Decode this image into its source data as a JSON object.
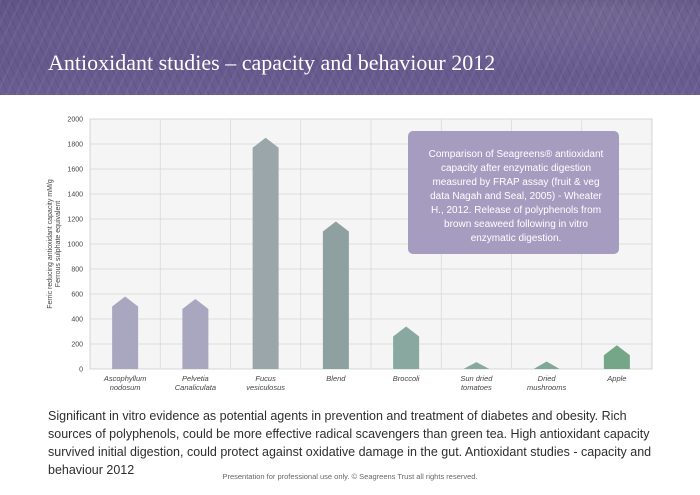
{
  "header": {
    "title": "Antioxidant studies – capacity and behaviour 2012"
  },
  "chart_data": {
    "type": "bar",
    "categories": [
      [
        "Ascophyllum",
        "nodosum"
      ],
      [
        "Pelvetia",
        "Canaliculata"
      ],
      [
        "Fucus",
        "vesiculosus"
      ],
      [
        "Blend"
      ],
      [
        "Broccoli"
      ],
      [
        "Sun dried",
        "tomatoes"
      ],
      [
        "Dried",
        "mushrooms"
      ],
      [
        "Apple"
      ]
    ],
    "values": [
      580,
      560,
      1850,
      1180,
      340,
      55,
      60,
      190
    ],
    "bar_colors": [
      "#a9a6bf",
      "#a9a6bf",
      "#9ba6ab",
      "#8ea0a0",
      "#88a8a0",
      "#88a8a0",
      "#7ea996",
      "#76a688"
    ],
    "ylabel": [
      "Ferric reducing antioxidant capacity mM/g",
      "Ferrous sulphate equivalent"
    ],
    "ylim": [
      0,
      2000
    ],
    "yticks": [
      0,
      200,
      400,
      600,
      800,
      1000,
      1200,
      1400,
      1600,
      1800,
      2000
    ],
    "grid": true,
    "annotation": "Comparison of Seagreens® antioxidant capacity after enzymatic digestion measured by FRAP assay (fruit & veg data Nagah and Seal, 2005) - Wheater H., 2012. Release of polyphenols from brown seaweed following in vitro enzymatic digestion."
  },
  "body_text": "Significant in vitro evidence as potential agents in prevention and treatment of diabetes and obesity. Rich sources of polyphenols, could be more effective radical scavengers than green tea. High antioxidant capacity survived initial digestion, could protect against oxidative damage in the gut. Antioxidant studies - capacity and behaviour 2012",
  "footer": "Presentation for professional use only. © Seagreens Trust all rights reserved."
}
